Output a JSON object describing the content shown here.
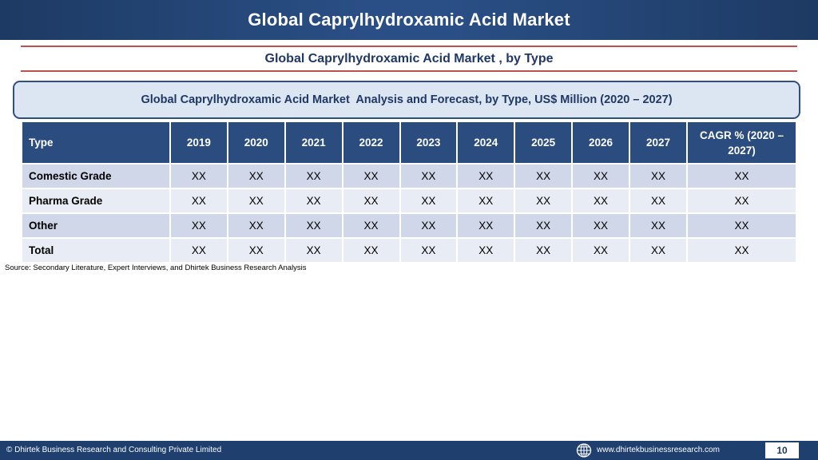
{
  "header": {
    "title": "Global Caprylhydroxamic Acid Market"
  },
  "subtitle": "Global Caprylhydroxamic Acid Market , by Type",
  "table_caption": "Global Caprylhydroxamic Acid Market  Analysis and Forecast, by Type, US$ Million (2020 – 2027)",
  "table": {
    "headers": [
      "Type",
      "2019",
      "2020",
      "2021",
      "2022",
      "2023",
      "2024",
      "2025",
      "2026",
      "2027",
      "CAGR % (2020 – 2027)"
    ],
    "rows": [
      {
        "label": "Comestic Grade",
        "values": [
          "XX",
          "XX",
          "XX",
          "XX",
          "XX",
          "XX",
          "XX",
          "XX",
          "XX",
          "XX"
        ]
      },
      {
        "label": "Pharma Grade",
        "values": [
          "XX",
          "XX",
          "XX",
          "XX",
          "XX",
          "XX",
          "XX",
          "XX",
          "XX",
          "XX"
        ]
      },
      {
        "label": "Other",
        "values": [
          "XX",
          "XX",
          "XX",
          "XX",
          "XX",
          "XX",
          "XX",
          "XX",
          "XX",
          "XX"
        ]
      },
      {
        "label": "Total",
        "values": [
          "XX",
          "XX",
          "XX",
          "XX",
          "XX",
          "XX",
          "XX",
          "XX",
          "XX",
          "XX"
        ]
      }
    ]
  },
  "source": "Source: Secondary Literature, Expert Interviews, and Dhirtek Business Research Analysis",
  "footer": {
    "copyright": "© Dhirtek Business Research and Consulting Private Limited",
    "website": "www.dhirtekbusinessresearch.com",
    "page_number": "10",
    "globe_icon": "globe-icon"
  },
  "colors": {
    "header_bg": "#2a4f86",
    "table_header_bg": "#2b4c7e",
    "accent_rule": "#c0504d",
    "row_odd": "#cfd7e8",
    "row_even": "#e8ecf5"
  }
}
